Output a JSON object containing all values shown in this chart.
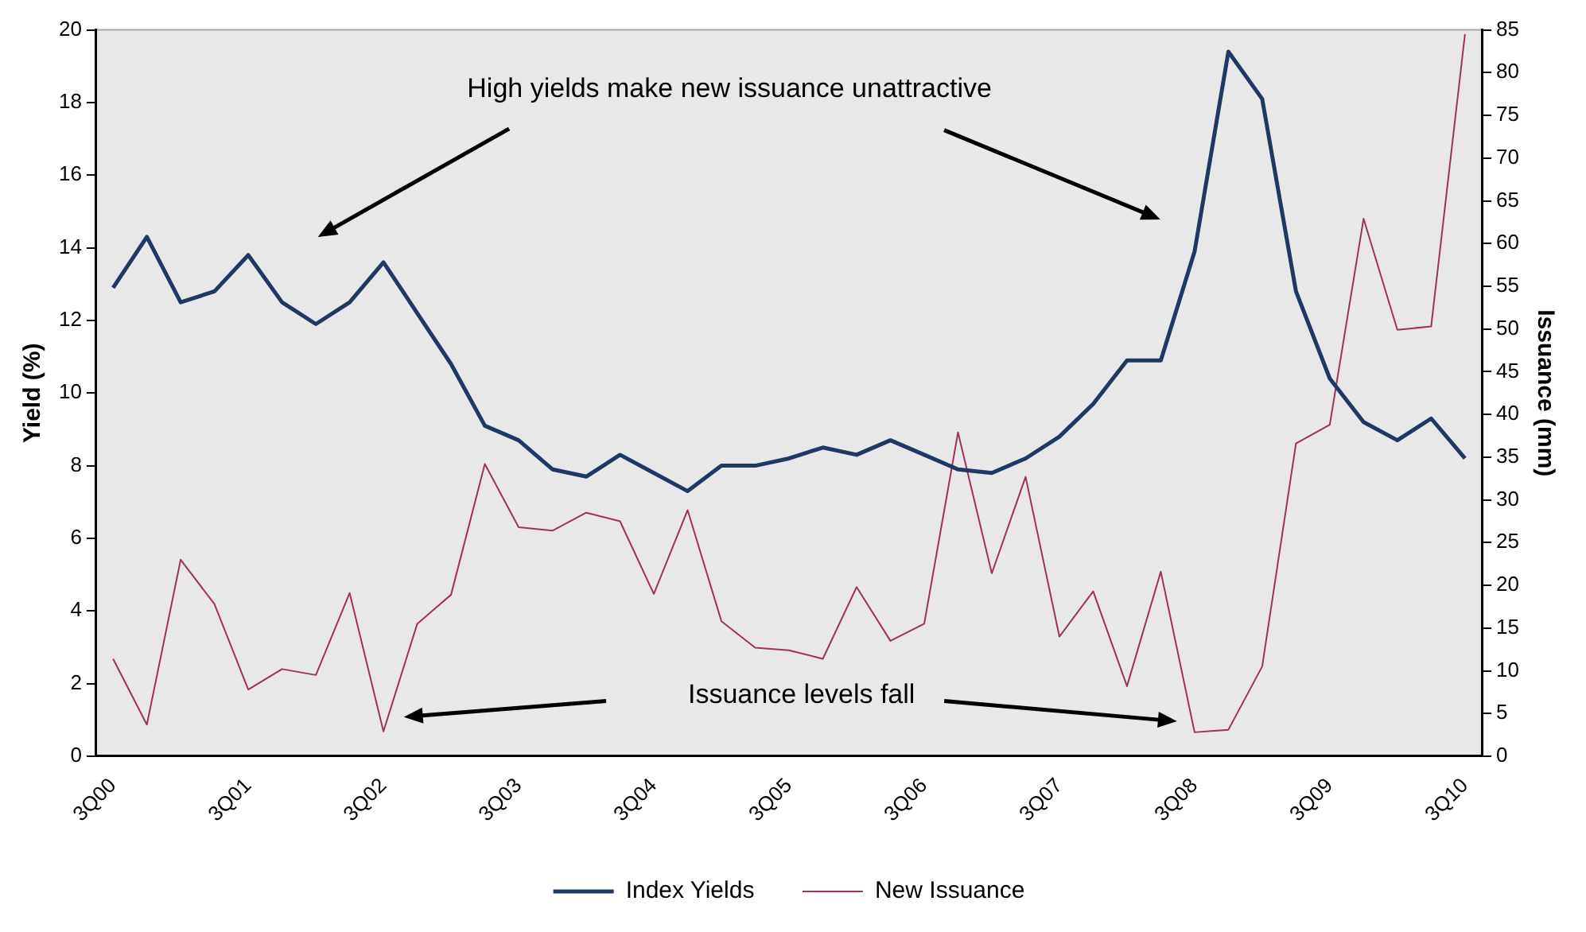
{
  "chart_data": {
    "type": "line",
    "ylabel": "Yield (%)",
    "y2label": "Issuance (mm)",
    "categories": [
      "3Q00",
      null,
      null,
      null,
      "3Q01",
      null,
      null,
      null,
      "3Q02",
      null,
      null,
      null,
      "3Q03",
      null,
      null,
      null,
      "3Q04",
      null,
      null,
      null,
      "3Q05",
      null,
      null,
      null,
      "3Q06",
      null,
      null,
      null,
      "3Q07",
      null,
      null,
      null,
      "3Q08",
      null,
      null,
      null,
      "3Q09",
      null,
      null,
      null,
      "3Q10"
    ],
    "series": [
      {
        "name": "Index Yields",
        "color": "#1f3864",
        "values": [
          12.9,
          14.3,
          12.5,
          12.8,
          13.8,
          12.5,
          11.9,
          12.5,
          13.6,
          12.2,
          10.8,
          9.1,
          8.7,
          7.9,
          7.7,
          8.3,
          7.8,
          7.3,
          8.0,
          8.0,
          8.2,
          8.5,
          8.3,
          8.7,
          8.3,
          7.9,
          7.8,
          8.2,
          8.8,
          9.7,
          10.9,
          10.9,
          13.9,
          19.4,
          18.1,
          12.8,
          10.4,
          9.2,
          8.7,
          9.3,
          8.2
        ]
      },
      {
        "name": "New Issuance",
        "color": "#a0305e",
        "axis": "y2",
        "values": [
          11.4,
          3.7,
          23.0,
          17.8,
          7.8,
          10.2,
          9.5,
          19.1,
          2.9,
          15.5,
          18.9,
          34.2,
          26.8,
          26.4,
          28.5,
          27.5,
          19.0,
          28.8,
          15.8,
          12.7,
          12.4,
          11.4,
          19.8,
          13.5,
          15.5,
          37.9,
          21.4,
          32.7,
          14.0,
          19.3,
          8.2,
          21.6,
          2.8,
          3.1,
          10.5,
          36.6,
          38.8,
          62.9,
          49.9,
          50.3,
          84.5
        ]
      }
    ],
    "ylim": [
      0,
      20
    ],
    "yticks": [
      0,
      2,
      4,
      6,
      8,
      10,
      12,
      14,
      16,
      18,
      20
    ],
    "y2lim": [
      0,
      85
    ],
    "y2ticks": [
      0,
      5,
      10,
      15,
      20,
      25,
      30,
      35,
      40,
      45,
      50,
      55,
      60,
      65,
      70,
      75,
      80,
      85
    ],
    "annotations": [
      "High yields make new issuance unattractive",
      "Issuance levels fall"
    ],
    "legend": "bottom",
    "grid": false,
    "marker": "none",
    "line_style": "solid"
  }
}
